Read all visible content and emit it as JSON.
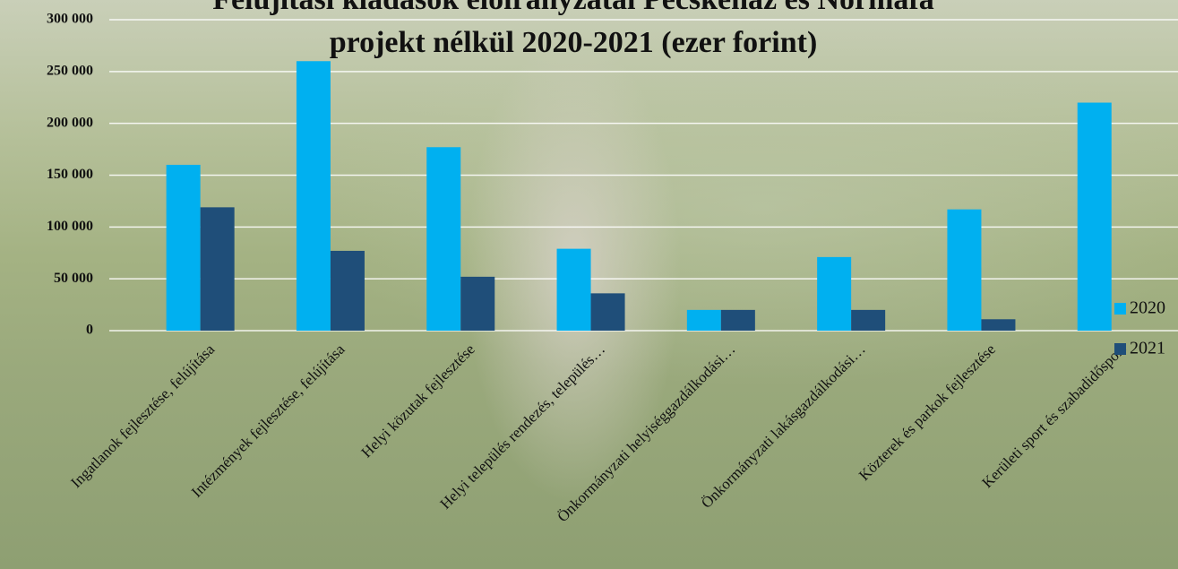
{
  "chart_data": {
    "type": "bar",
    "title": "Felújítási kiadások előirányzatai Pecskeház és Normafa",
    "subtitle": "projekt nélkül 2020-2021 (ezer forint)",
    "categories": [
      "Ingatlanok fejlesztése, felújítása",
      "Intézmények fejlesztése, felújítása",
      "Helyi közutak fejlesztése",
      "Helyi település rendezés, település…",
      "Önkormányzati helyiséggazdálkodási…",
      "Önkormányzati lakásgazdálkodási…",
      "Közterek és parkok fejlesztése",
      "Kerületi sport és szabadidősport"
    ],
    "series": [
      {
        "name": "2020",
        "color": "#00b0f0",
        "values": [
          160000,
          260000,
          177000,
          79000,
          20000,
          71000,
          117000,
          220000
        ]
      },
      {
        "name": "2021",
        "color": "#1f4e79",
        "values": [
          119000,
          77000,
          52000,
          36000,
          20000,
          20000,
          11000,
          0
        ]
      }
    ],
    "ylim": [
      0,
      300000
    ],
    "yticks": [
      {
        "value": 0,
        "label": "0"
      },
      {
        "value": 50000,
        "label": "50 000"
      },
      {
        "value": 100000,
        "label": "100 000"
      },
      {
        "value": 150000,
        "label": "150 000"
      },
      {
        "value": 200000,
        "label": "200 000"
      },
      {
        "value": 250000,
        "label": "250 000"
      },
      {
        "value": 300000,
        "label": "300 000"
      }
    ],
    "grid": true,
    "legend": "right"
  }
}
